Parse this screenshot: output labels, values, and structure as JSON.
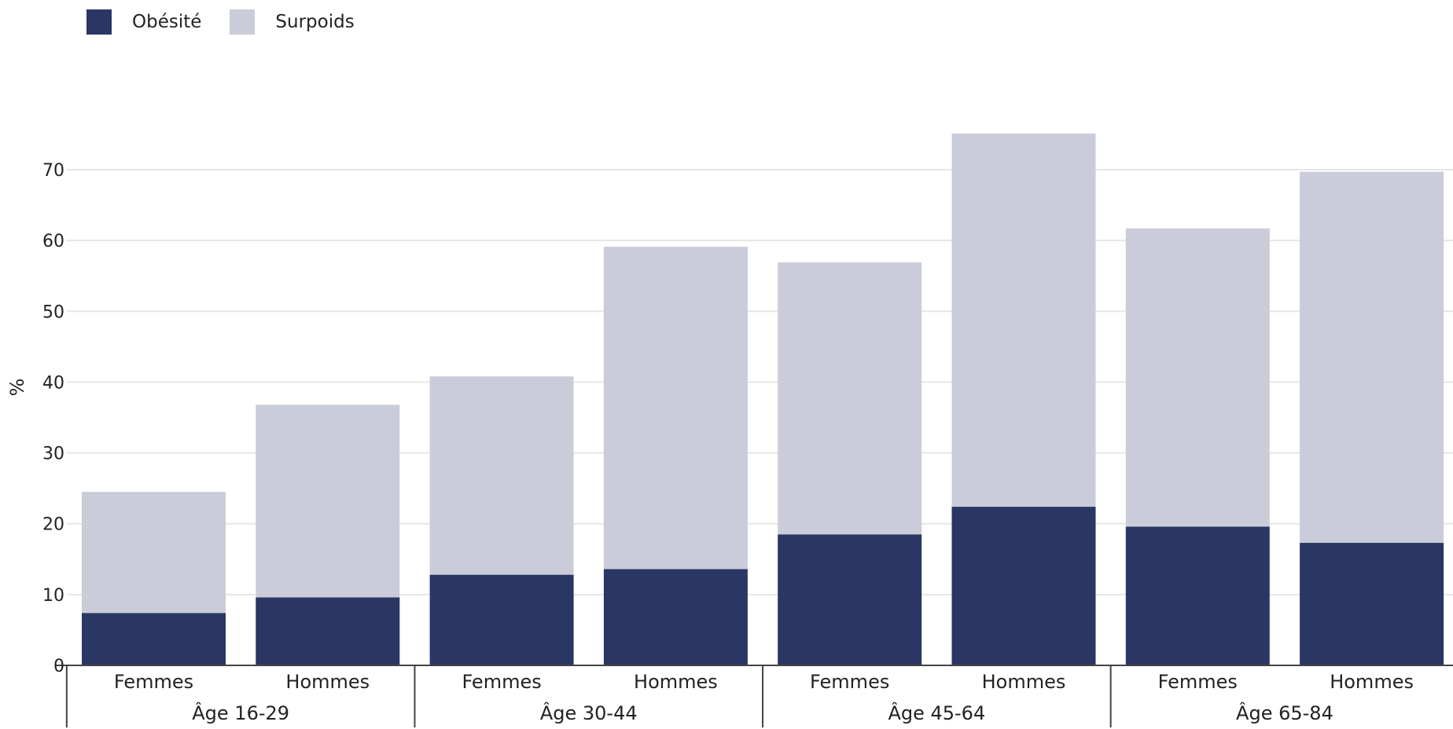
{
  "legend": {
    "items": [
      {
        "label": "Obésité",
        "color": "#2a3663"
      },
      {
        "label": "Surpoids",
        "color": "#cacdd9"
      }
    ]
  },
  "chart_data": {
    "type": "bar",
    "stacked": true,
    "ylabel": "%",
    "xlabel": "",
    "ylim": [
      0,
      77
    ],
    "yticks": [
      0,
      10,
      20,
      30,
      40,
      50,
      60,
      70
    ],
    "grid": true,
    "legend_position": "top-left",
    "groups": [
      {
        "label": "Âge 16-29",
        "categories": [
          "Femmes",
          "Hommes"
        ]
      },
      {
        "label": "Âge 30-44",
        "categories": [
          "Femmes",
          "Hommes"
        ]
      },
      {
        "label": "Âge 45-64",
        "categories": [
          "Femmes",
          "Hommes"
        ]
      },
      {
        "label": "Âge 65-84",
        "categories": [
          "Femmes",
          "Hommes"
        ]
      }
    ],
    "series": [
      {
        "name": "Obésité",
        "color": "#2a3663",
        "values": [
          7.4,
          9.6,
          12.8,
          13.6,
          18.5,
          22.4,
          19.6,
          17.3
        ]
      },
      {
        "name": "Surpoids",
        "color": "#cacdd9",
        "values": [
          17.1,
          27.2,
          28.0,
          45.5,
          38.4,
          52.7,
          42.1,
          52.4
        ]
      }
    ]
  }
}
